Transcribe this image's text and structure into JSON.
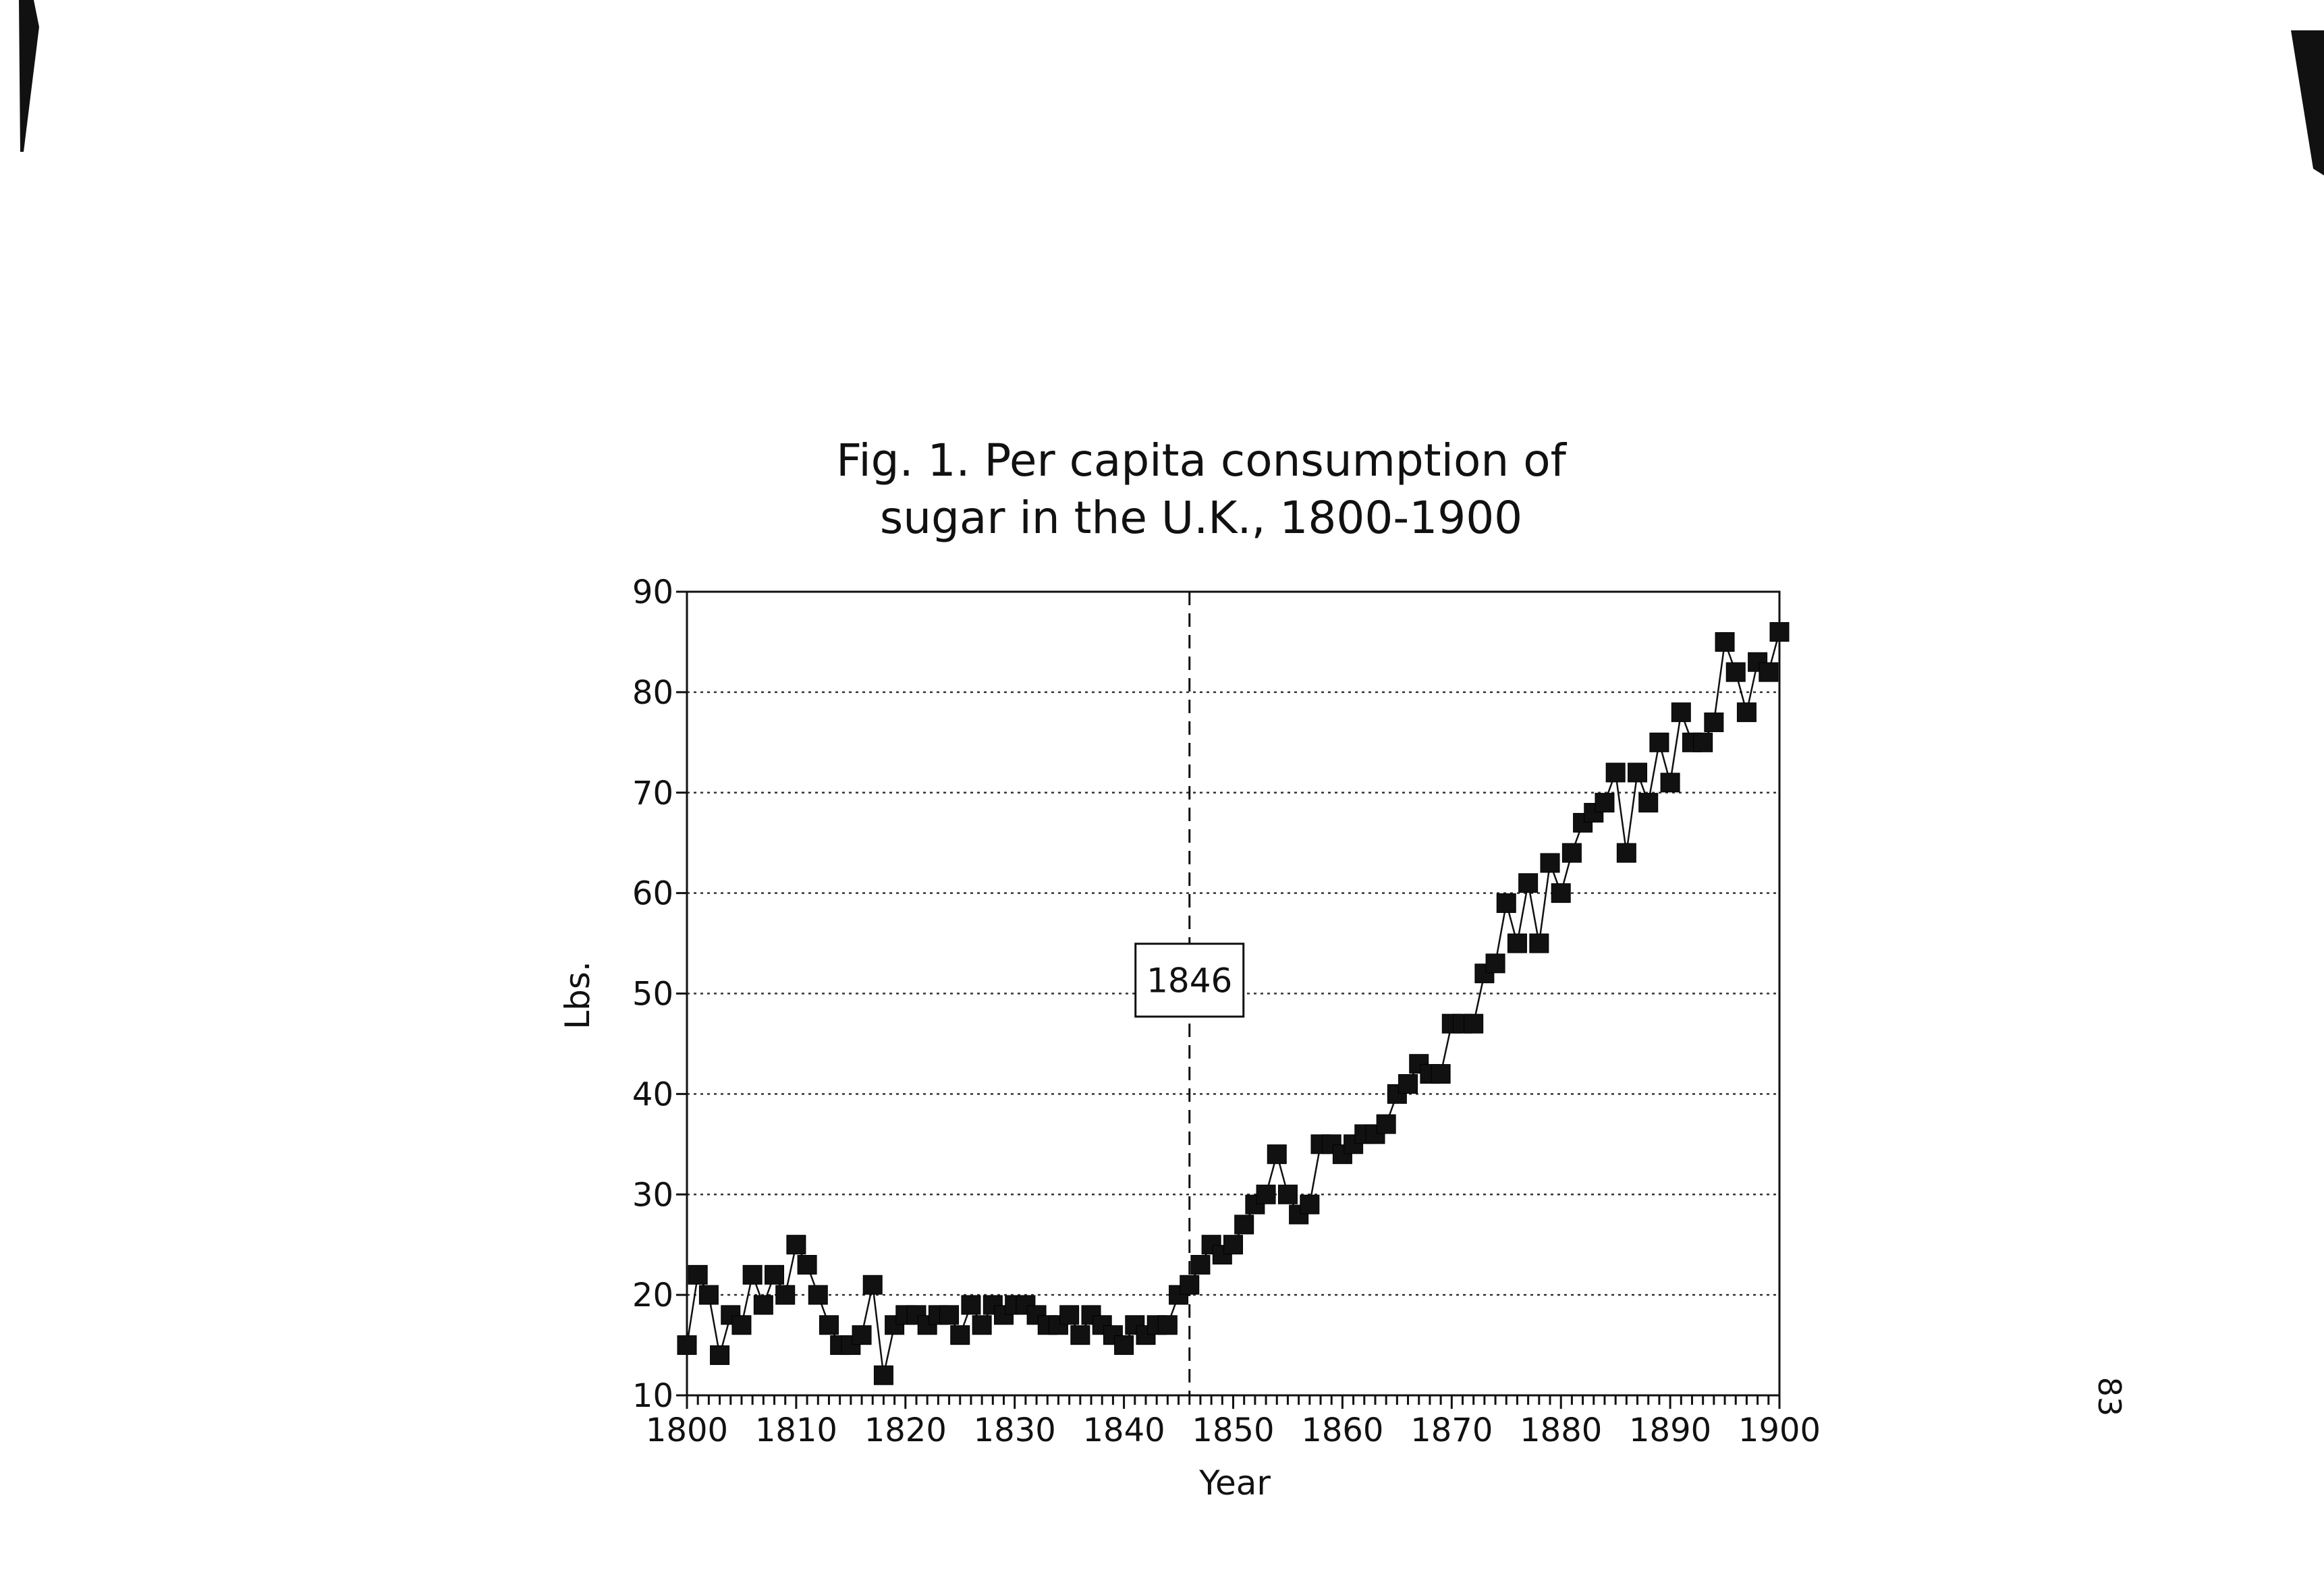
{
  "page_number": "83",
  "chart_data": {
    "type": "line",
    "title": "Fig. 1. Per capita consumption of sugar in the U.K., 1800-1900",
    "title_lines": [
      "Fig. 1. Per capita consumption of",
      "sugar in the U.K., 1800-1900"
    ],
    "xlabel": "Year",
    "ylabel": "Lbs.",
    "xlim": [
      1800,
      1900
    ],
    "ylim": [
      10,
      90
    ],
    "x_ticks": [
      1800,
      1810,
      1820,
      1830,
      1840,
      1850,
      1860,
      1870,
      1880,
      1890,
      1900
    ],
    "y_ticks": [
      10,
      20,
      30,
      40,
      50,
      60,
      70,
      80,
      90
    ],
    "grid": "horizontal-dotted",
    "reference_line": {
      "x": 1846,
      "label": "1846"
    },
    "x": [
      1800,
      1801,
      1802,
      1803,
      1804,
      1805,
      1806,
      1807,
      1808,
      1809,
      1810,
      1811,
      1812,
      1813,
      1814,
      1815,
      1816,
      1817,
      1818,
      1819,
      1820,
      1821,
      1822,
      1823,
      1824,
      1825,
      1826,
      1827,
      1828,
      1829,
      1830,
      1831,
      1832,
      1833,
      1834,
      1835,
      1836,
      1837,
      1838,
      1839,
      1840,
      1841,
      1842,
      1843,
      1844,
      1845,
      1846,
      1847,
      1848,
      1849,
      1850,
      1851,
      1852,
      1853,
      1854,
      1855,
      1856,
      1857,
      1858,
      1859,
      1860,
      1861,
      1862,
      1863,
      1864,
      1865,
      1866,
      1867,
      1868,
      1869,
      1870,
      1871,
      1872,
      1873,
      1874,
      1875,
      1876,
      1877,
      1878,
      1879,
      1880,
      1881,
      1882,
      1883,
      1884,
      1885,
      1886,
      1887,
      1888,
      1889,
      1890,
      1891,
      1892,
      1893,
      1894,
      1895,
      1896,
      1897,
      1898,
      1899,
      1900
    ],
    "values": [
      15,
      22,
      20,
      14,
      18,
      17,
      22,
      19,
      22,
      20,
      25,
      23,
      20,
      17,
      15,
      15,
      16,
      21,
      12,
      17,
      18,
      18,
      17,
      18,
      18,
      16,
      19,
      17,
      19,
      18,
      19,
      19,
      18,
      17,
      17,
      18,
      16,
      18,
      17,
      16,
      15,
      17,
      16,
      17,
      17,
      20,
      21,
      23,
      25,
      24,
      25,
      27,
      29,
      30,
      34,
      30,
      28,
      29,
      35,
      35,
      34,
      35,
      36,
      36,
      37,
      40,
      41,
      43,
      42,
      42,
      47,
      47,
      47,
      52,
      53,
      59,
      55,
      61,
      55,
      63,
      60,
      64,
      67,
      68,
      69,
      72,
      64,
      72,
      69,
      75,
      71,
      78,
      75,
      75,
      77,
      85,
      82,
      78,
      83,
      82,
      86
    ]
  }
}
